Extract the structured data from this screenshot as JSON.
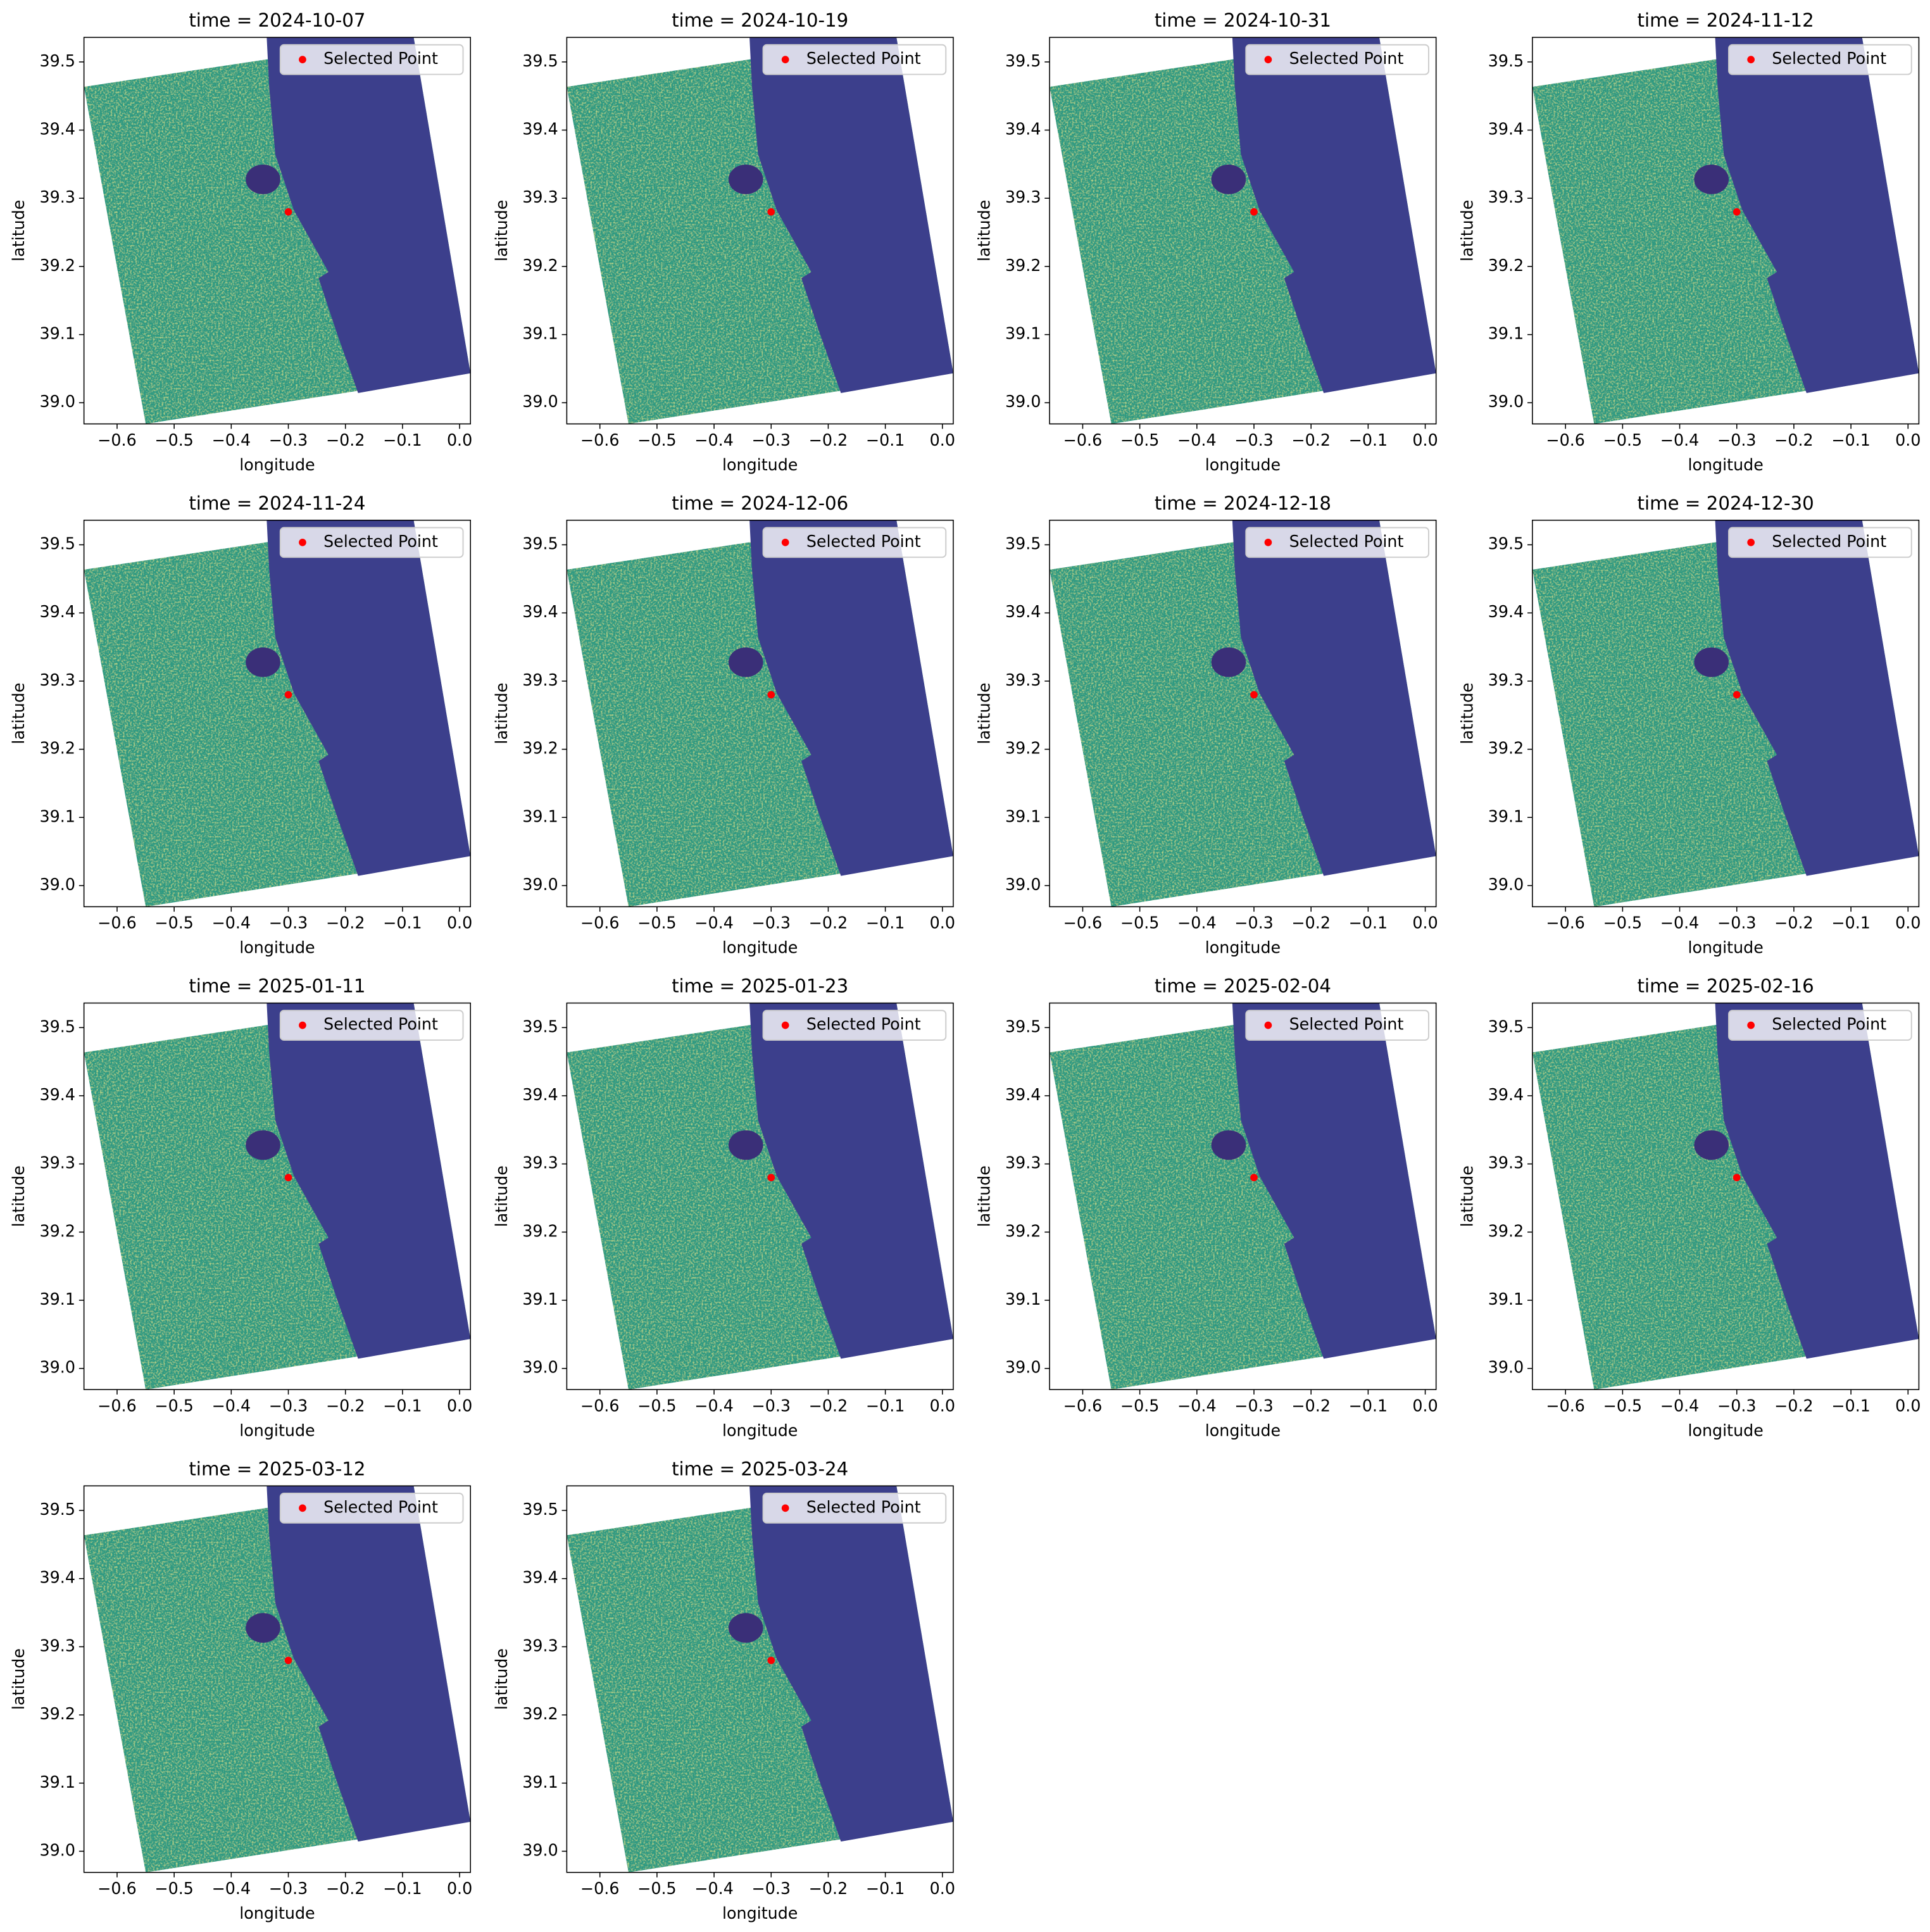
{
  "chart_data": [
    {
      "type": "scatter",
      "title": "time = 2024-10-07",
      "xlabel": "longitude",
      "ylabel": "latitude",
      "xlim": [
        -0.658,
        0.019
      ],
      "ylim": [
        38.969,
        39.536
      ],
      "xticks": [
        {
          "value": -0.6,
          "label": "−0.6"
        },
        {
          "value": -0.5,
          "label": "−0.5"
        },
        {
          "value": -0.4,
          "label": "−0.4"
        },
        {
          "value": -0.3,
          "label": "−0.3"
        },
        {
          "value": -0.2,
          "label": "−0.2"
        },
        {
          "value": -0.1,
          "label": "−0.1"
        },
        {
          "value": 0,
          "label": "0.0"
        }
      ],
      "yticks": [
        {
          "value": 39,
          "label": "39.0"
        },
        39.1,
        39.2,
        39.3,
        39.4,
        39.5
      ],
      "series": [
        {
          "name": "Selected Point",
          "color": "#ff0000",
          "x": [
            -0.3
          ],
          "values": [
            39.28
          ]
        }
      ],
      "legend": "upper right"
    },
    {
      "type": "scatter",
      "title": "time = 2024-10-19",
      "xlabel": "longitude",
      "ylabel": "latitude",
      "xlim": [
        -0.658,
        0.019
      ],
      "ylim": [
        38.969,
        39.536
      ],
      "xticks": [
        {
          "value": -0.6,
          "label": "−0.6"
        },
        {
          "value": -0.5,
          "label": "−0.5"
        },
        {
          "value": -0.4,
          "label": "−0.4"
        },
        {
          "value": -0.3,
          "label": "−0.3"
        },
        {
          "value": -0.2,
          "label": "−0.2"
        },
        {
          "value": -0.1,
          "label": "−0.1"
        },
        {
          "value": 0,
          "label": "0.0"
        }
      ],
      "yticks": [
        {
          "value": 39,
          "label": "39.0"
        },
        39.1,
        39.2,
        39.3,
        39.4,
        39.5
      ],
      "series": [
        {
          "name": "Selected Point",
          "color": "#ff0000",
          "x": [
            -0.3
          ],
          "values": [
            39.28
          ]
        }
      ],
      "legend": "upper right"
    },
    {
      "type": "scatter",
      "title": "time = 2024-10-31",
      "xlabel": "longitude",
      "ylabel": "latitude",
      "xlim": [
        -0.658,
        0.019
      ],
      "ylim": [
        38.969,
        39.536
      ],
      "xticks": [
        {
          "value": -0.6,
          "label": "−0.6"
        },
        {
          "value": -0.5,
          "label": "−0.5"
        },
        {
          "value": -0.4,
          "label": "−0.4"
        },
        {
          "value": -0.3,
          "label": "−0.3"
        },
        {
          "value": -0.2,
          "label": "−0.2"
        },
        {
          "value": -0.1,
          "label": "−0.1"
        },
        {
          "value": 0,
          "label": "0.0"
        }
      ],
      "yticks": [
        {
          "value": 39,
          "label": "39.0"
        },
        39.1,
        39.2,
        39.3,
        39.4,
        39.5
      ],
      "series": [
        {
          "name": "Selected Point",
          "color": "#ff0000",
          "x": [
            -0.3
          ],
          "values": [
            39.28
          ]
        }
      ],
      "legend": "upper right"
    },
    {
      "type": "scatter",
      "title": "time = 2024-11-12",
      "xlabel": "longitude",
      "ylabel": "latitude",
      "xlim": [
        -0.658,
        0.019
      ],
      "ylim": [
        38.969,
        39.536
      ],
      "xticks": [
        {
          "value": -0.6,
          "label": "−0.6"
        },
        {
          "value": -0.5,
          "label": "−0.5"
        },
        {
          "value": -0.4,
          "label": "−0.4"
        },
        {
          "value": -0.3,
          "label": "−0.3"
        },
        {
          "value": -0.2,
          "label": "−0.2"
        },
        {
          "value": -0.1,
          "label": "−0.1"
        },
        {
          "value": 0,
          "label": "0.0"
        }
      ],
      "yticks": [
        {
          "value": 39,
          "label": "39.0"
        },
        39.1,
        39.2,
        39.3,
        39.4,
        39.5
      ],
      "series": [
        {
          "name": "Selected Point",
          "color": "#ff0000",
          "x": [
            -0.3
          ],
          "values": [
            39.28
          ]
        }
      ],
      "legend": "upper right"
    },
    {
      "type": "scatter",
      "title": "time = 2024-11-24",
      "xlabel": "longitude",
      "ylabel": "latitude",
      "xlim": [
        -0.658,
        0.019
      ],
      "ylim": [
        38.969,
        39.536
      ],
      "xticks": [
        {
          "value": -0.6,
          "label": "−0.6"
        },
        {
          "value": -0.5,
          "label": "−0.5"
        },
        {
          "value": -0.4,
          "label": "−0.4"
        },
        {
          "value": -0.3,
          "label": "−0.3"
        },
        {
          "value": -0.2,
          "label": "−0.2"
        },
        {
          "value": -0.1,
          "label": "−0.1"
        },
        {
          "value": 0,
          "label": "0.0"
        }
      ],
      "yticks": [
        {
          "value": 39,
          "label": "39.0"
        },
        39.1,
        39.2,
        39.3,
        39.4,
        39.5
      ],
      "series": [
        {
          "name": "Selected Point",
          "color": "#ff0000",
          "x": [
            -0.3
          ],
          "values": [
            39.28
          ]
        }
      ],
      "legend": "upper right"
    },
    {
      "type": "scatter",
      "title": "time = 2024-12-06",
      "xlabel": "longitude",
      "ylabel": "latitude",
      "xlim": [
        -0.658,
        0.019
      ],
      "ylim": [
        38.969,
        39.536
      ],
      "xticks": [
        {
          "value": -0.6,
          "label": "−0.6"
        },
        {
          "value": -0.5,
          "label": "−0.5"
        },
        {
          "value": -0.4,
          "label": "−0.4"
        },
        {
          "value": -0.3,
          "label": "−0.3"
        },
        {
          "value": -0.2,
          "label": "−0.2"
        },
        {
          "value": -0.1,
          "label": "−0.1"
        },
        {
          "value": 0,
          "label": "0.0"
        }
      ],
      "yticks": [
        {
          "value": 39,
          "label": "39.0"
        },
        39.1,
        39.2,
        39.3,
        39.4,
        39.5
      ],
      "series": [
        {
          "name": "Selected Point",
          "color": "#ff0000",
          "x": [
            -0.3
          ],
          "values": [
            39.28
          ]
        }
      ],
      "legend": "upper right"
    },
    {
      "type": "scatter",
      "title": "time = 2024-12-18",
      "xlabel": "longitude",
      "ylabel": "latitude",
      "xlim": [
        -0.658,
        0.019
      ],
      "ylim": [
        38.969,
        39.536
      ],
      "xticks": [
        {
          "value": -0.6,
          "label": "−0.6"
        },
        {
          "value": -0.5,
          "label": "−0.5"
        },
        {
          "value": -0.4,
          "label": "−0.4"
        },
        {
          "value": -0.3,
          "label": "−0.3"
        },
        {
          "value": -0.2,
          "label": "−0.2"
        },
        {
          "value": -0.1,
          "label": "−0.1"
        },
        {
          "value": 0,
          "label": "0.0"
        }
      ],
      "yticks": [
        {
          "value": 39,
          "label": "39.0"
        },
        39.1,
        39.2,
        39.3,
        39.4,
        39.5
      ],
      "series": [
        {
          "name": "Selected Point",
          "color": "#ff0000",
          "x": [
            -0.3
          ],
          "values": [
            39.28
          ]
        }
      ],
      "legend": "upper right"
    },
    {
      "type": "scatter",
      "title": "time = 2024-12-30",
      "xlabel": "longitude",
      "ylabel": "latitude",
      "xlim": [
        -0.658,
        0.019
      ],
      "ylim": [
        38.969,
        39.536
      ],
      "xticks": [
        {
          "value": -0.6,
          "label": "−0.6"
        },
        {
          "value": -0.5,
          "label": "−0.5"
        },
        {
          "value": -0.4,
          "label": "−0.4"
        },
        {
          "value": -0.3,
          "label": "−0.3"
        },
        {
          "value": -0.2,
          "label": "−0.2"
        },
        {
          "value": -0.1,
          "label": "−0.1"
        },
        {
          "value": 0,
          "label": "0.0"
        }
      ],
      "yticks": [
        {
          "value": 39,
          "label": "39.0"
        },
        39.1,
        39.2,
        39.3,
        39.4,
        39.5
      ],
      "series": [
        {
          "name": "Selected Point",
          "color": "#ff0000",
          "x": [
            -0.3
          ],
          "values": [
            39.28
          ]
        }
      ],
      "legend": "upper right"
    },
    {
      "type": "scatter",
      "title": "time = 2025-01-11",
      "xlabel": "longitude",
      "ylabel": "latitude",
      "xlim": [
        -0.658,
        0.019
      ],
      "ylim": [
        38.969,
        39.536
      ],
      "xticks": [
        {
          "value": -0.6,
          "label": "−0.6"
        },
        {
          "value": -0.5,
          "label": "−0.5"
        },
        {
          "value": -0.4,
          "label": "−0.4"
        },
        {
          "value": -0.3,
          "label": "−0.3"
        },
        {
          "value": -0.2,
          "label": "−0.2"
        },
        {
          "value": -0.1,
          "label": "−0.1"
        },
        {
          "value": 0,
          "label": "0.0"
        }
      ],
      "yticks": [
        {
          "value": 39,
          "label": "39.0"
        },
        39.1,
        39.2,
        39.3,
        39.4,
        39.5
      ],
      "series": [
        {
          "name": "Selected Point",
          "color": "#ff0000",
          "x": [
            -0.3
          ],
          "values": [
            39.28
          ]
        }
      ],
      "legend": "upper right"
    },
    {
      "type": "scatter",
      "title": "time = 2025-01-23",
      "xlabel": "longitude",
      "ylabel": "latitude",
      "xlim": [
        -0.658,
        0.019
      ],
      "ylim": [
        38.969,
        39.536
      ],
      "xticks": [
        {
          "value": -0.6,
          "label": "−0.6"
        },
        {
          "value": -0.5,
          "label": "−0.5"
        },
        {
          "value": -0.4,
          "label": "−0.4"
        },
        {
          "value": -0.3,
          "label": "−0.3"
        },
        {
          "value": -0.2,
          "label": "−0.2"
        },
        {
          "value": -0.1,
          "label": "−0.1"
        },
        {
          "value": 0,
          "label": "0.0"
        }
      ],
      "yticks": [
        {
          "value": 39,
          "label": "39.0"
        },
        39.1,
        39.2,
        39.3,
        39.4,
        39.5
      ],
      "series": [
        {
          "name": "Selected Point",
          "color": "#ff0000",
          "x": [
            -0.3
          ],
          "values": [
            39.28
          ]
        }
      ],
      "legend": "upper right"
    },
    {
      "type": "scatter",
      "title": "time = 2025-02-04",
      "xlabel": "longitude",
      "ylabel": "latitude",
      "xlim": [
        -0.658,
        0.019
      ],
      "ylim": [
        38.969,
        39.536
      ],
      "xticks": [
        {
          "value": -0.6,
          "label": "−0.6"
        },
        {
          "value": -0.5,
          "label": "−0.5"
        },
        {
          "value": -0.4,
          "label": "−0.4"
        },
        {
          "value": -0.3,
          "label": "−0.3"
        },
        {
          "value": -0.2,
          "label": "−0.2"
        },
        {
          "value": -0.1,
          "label": "−0.1"
        },
        {
          "value": 0,
          "label": "0.0"
        }
      ],
      "yticks": [
        {
          "value": 39,
          "label": "39.0"
        },
        39.1,
        39.2,
        39.3,
        39.4,
        39.5
      ],
      "series": [
        {
          "name": "Selected Point",
          "color": "#ff0000",
          "x": [
            -0.3
          ],
          "values": [
            39.28
          ]
        }
      ],
      "legend": "upper right"
    },
    {
      "type": "scatter",
      "title": "time = 2025-02-16",
      "xlabel": "longitude",
      "ylabel": "latitude",
      "xlim": [
        -0.658,
        0.019
      ],
      "ylim": [
        38.969,
        39.536
      ],
      "xticks": [
        {
          "value": -0.6,
          "label": "−0.6"
        },
        {
          "value": -0.5,
          "label": "−0.5"
        },
        {
          "value": -0.4,
          "label": "−0.4"
        },
        {
          "value": -0.3,
          "label": "−0.3"
        },
        {
          "value": -0.2,
          "label": "−0.2"
        },
        {
          "value": -0.1,
          "label": "−0.1"
        },
        {
          "value": 0,
          "label": "0.0"
        }
      ],
      "yticks": [
        {
          "value": 39,
          "label": "39.0"
        },
        39.1,
        39.2,
        39.3,
        39.4,
        39.5
      ],
      "series": [
        {
          "name": "Selected Point",
          "color": "#ff0000",
          "x": [
            -0.3
          ],
          "values": [
            39.28
          ]
        }
      ],
      "legend": "upper right"
    },
    {
      "type": "scatter",
      "title": "time = 2025-03-12",
      "xlabel": "longitude",
      "ylabel": "latitude",
      "xlim": [
        -0.658,
        0.019
      ],
      "ylim": [
        38.969,
        39.536
      ],
      "xticks": [
        {
          "value": -0.6,
          "label": "−0.6"
        },
        {
          "value": -0.5,
          "label": "−0.5"
        },
        {
          "value": -0.4,
          "label": "−0.4"
        },
        {
          "value": -0.3,
          "label": "−0.3"
        },
        {
          "value": -0.2,
          "label": "−0.2"
        },
        {
          "value": -0.1,
          "label": "−0.1"
        },
        {
          "value": 0,
          "label": "0.0"
        }
      ],
      "yticks": [
        {
          "value": 39,
          "label": "39.0"
        },
        39.1,
        39.2,
        39.3,
        39.4,
        39.5
      ],
      "series": [
        {
          "name": "Selected Point",
          "color": "#ff0000",
          "x": [
            -0.3
          ],
          "values": [
            39.28
          ]
        }
      ],
      "legend": "upper right"
    },
    {
      "type": "scatter",
      "title": "time = 2025-03-24",
      "xlabel": "longitude",
      "ylabel": "latitude",
      "xlim": [
        -0.658,
        0.019
      ],
      "ylim": [
        38.969,
        39.536
      ],
      "xticks": [
        {
          "value": -0.6,
          "label": "−0.6"
        },
        {
          "value": -0.5,
          "label": "−0.5"
        },
        {
          "value": -0.4,
          "label": "−0.4"
        },
        {
          "value": -0.3,
          "label": "−0.3"
        },
        {
          "value": -0.2,
          "label": "−0.2"
        },
        {
          "value": -0.1,
          "label": "−0.1"
        },
        {
          "value": 0,
          "label": "0.0"
        }
      ],
      "yticks": [
        {
          "value": 39,
          "label": "39.0"
        },
        39.1,
        39.2,
        39.3,
        39.4,
        39.5
      ],
      "series": [
        {
          "name": "Selected Point",
          "color": "#ff0000",
          "x": [
            -0.3
          ],
          "values": [
            39.28
          ]
        }
      ],
      "legend": "upper right"
    }
  ]
}
